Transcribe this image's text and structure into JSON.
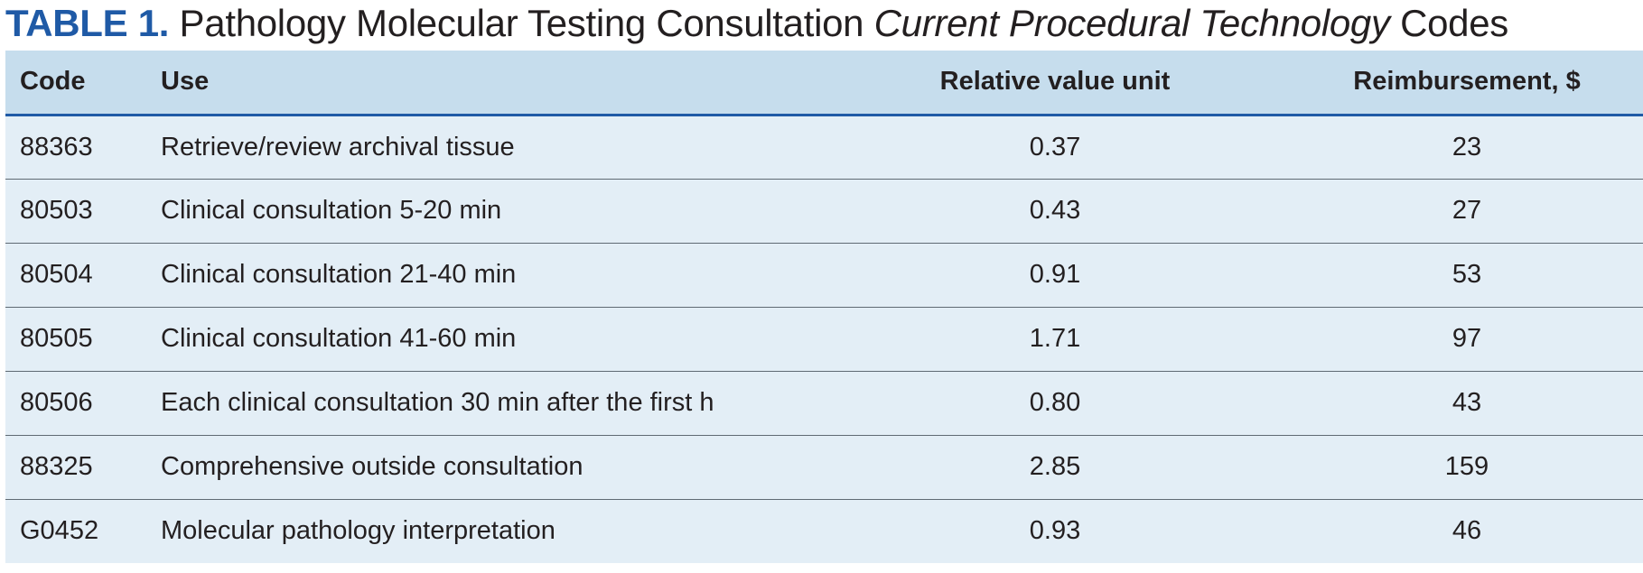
{
  "title": {
    "label": "TABLE 1.",
    "text_before": "Pathology Molecular Testing Consultation",
    "text_italic": "Current Procedural Technology",
    "text_after": "Codes"
  },
  "table": {
    "headers": {
      "code": "Code",
      "use": "Use",
      "rvu": "Relative value unit",
      "reimbursement": "Reimbursement, $"
    },
    "rows": [
      {
        "code": "88363",
        "use": "Retrieve/review archival tissue",
        "rvu": "0.37",
        "reimbursement": "23"
      },
      {
        "code": "80503",
        "use": "Clinical consultation 5-20 min",
        "rvu": "0.43",
        "reimbursement": "27"
      },
      {
        "code": "80504",
        "use": "Clinical consultation 21-40 min",
        "rvu": "0.91",
        "reimbursement": "53"
      },
      {
        "code": "80505",
        "use": "Clinical consultation 41-60 min",
        "rvu": "1.71",
        "reimbursement": "97"
      },
      {
        "code": "80506",
        "use": "Each clinical consultation 30 min after the first h",
        "rvu": "0.80",
        "reimbursement": "43"
      },
      {
        "code": "88325",
        "use": "Comprehensive outside consultation",
        "rvu": "2.85",
        "reimbursement": "159"
      },
      {
        "code": "G0452",
        "use": "Molecular pathology interpretation",
        "rvu": "0.93",
        "reimbursement": "46"
      }
    ]
  },
  "colors": {
    "label_blue": "#1f5aa6",
    "header_bg": "#c6dded",
    "row_bg": "#e3eef6"
  }
}
